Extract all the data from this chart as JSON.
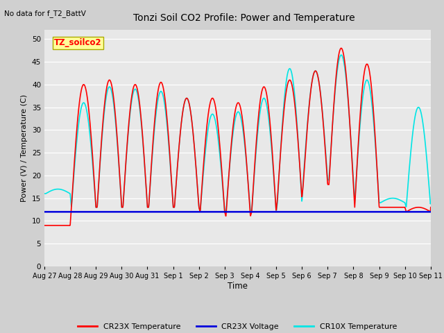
{
  "title": "Tonzi Soil CO2 Profile: Power and Temperature",
  "subtitle": "No data for f_T2_BattV",
  "ylabel": "Power (V) / Temperature (C)",
  "xlabel": "Time",
  "ylim": [
    0,
    52
  ],
  "yticks": [
    0,
    5,
    10,
    15,
    20,
    25,
    30,
    35,
    40,
    45,
    50
  ],
  "bg_color": "#e8e8e8",
  "cr23x_temp_color": "#ff0000",
  "cr23x_volt_color": "#0000dd",
  "cr10x_temp_color": "#00e5e5",
  "legend_box_color": "#ffff99",
  "legend_box_text": "TZ_soilco2",
  "x_labels": [
    "Aug 27",
    "Aug 28",
    "Aug 29",
    "Aug 30",
    "Aug 31",
    "Sep 1",
    "Sep 2",
    "Sep 3",
    "Sep 4",
    "Sep 5",
    "Sep 6",
    "Sep 7",
    "Sep 8",
    "Sep 9",
    "Sep 10",
    "Sep 11"
  ],
  "line_width": 1.2,
  "cr23x_peaks": [
    9,
    40,
    41,
    40,
    40.5,
    37,
    37,
    36,
    39.5,
    41,
    43,
    48,
    44.5,
    13,
    13
  ],
  "cr23x_mins": [
    9,
    13,
    13,
    13,
    13,
    13,
    12,
    11,
    12,
    15,
    18,
    18,
    13,
    13,
    12
  ],
  "cr10x_peaks": [
    17,
    36,
    39.5,
    39,
    38.5,
    37,
    33.5,
    34,
    37,
    43.5,
    43,
    46.5,
    41,
    15,
    35
  ],
  "cr10x_mins": [
    16,
    13,
    13,
    13,
    13,
    13,
    12,
    12,
    12,
    14,
    19,
    19,
    14,
    14,
    13
  ],
  "volt_value": 12.0
}
